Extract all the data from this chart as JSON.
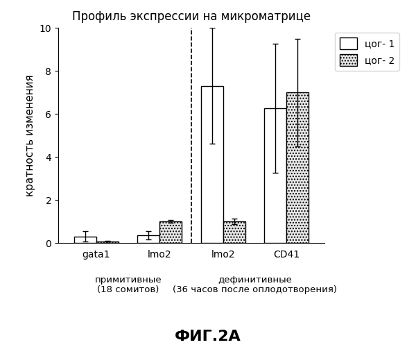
{
  "title": "Профиль экспрессии на микроматрице",
  "ylabel": "кратность изменения",
  "ylim": [
    0,
    10
  ],
  "yticks": [
    0,
    2,
    4,
    6,
    8,
    10
  ],
  "group_labels": [
    "gata1",
    "lmo2",
    "lmo2",
    "CD41"
  ],
  "bar1_values": [
    0.3,
    0.35,
    7.3,
    6.25
  ],
  "bar1_errors": [
    0.25,
    0.2,
    2.7,
    3.0
  ],
  "bar2_values": [
    0.05,
    1.0,
    1.0,
    7.0
  ],
  "bar2_errors": [
    0.05,
    0.08,
    0.12,
    2.5
  ],
  "bar_width": 0.35,
  "bar1_color": "#ffffff",
  "bar1_edgecolor": "#000000",
  "bar2_facecolor": "#e8e8e8",
  "bar2_edgecolor": "#000000",
  "legend_labels": [
    "цог- 1",
    "цог- 2"
  ],
  "section_label_primitive": "примитивные\n(18 сомитов)",
  "section_label_definitive": "дефинитивные\n(36 часов после оплодотворения)",
  "fig_caption": "ФИГ.2A",
  "background_color": "#ffffff",
  "dashed_line_between": [
    1,
    2
  ]
}
